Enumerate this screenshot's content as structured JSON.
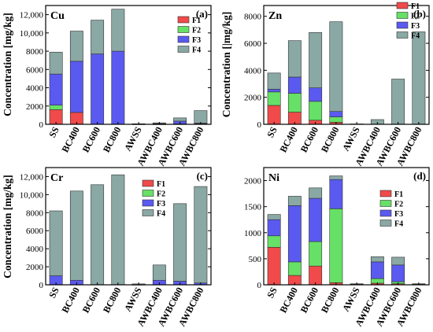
{
  "colors": {
    "F1": "#f04a4a",
    "F2": "#66e066",
    "F3": "#5a5af0",
    "F4": "#8aa8a4"
  },
  "chart_data": [
    {
      "type": "bar",
      "stacked": true,
      "element": "Cu",
      "panel": "(a)",
      "ylabel": "Concentration [mg/kg]",
      "ylim": [
        0,
        13000
      ],
      "yticks": [
        0,
        2000,
        4000,
        6000,
        8000,
        10000,
        12000
      ],
      "ytick_labels": [
        "0",
        "2000",
        "4000",
        "6000",
        "8000",
        "10,000",
        "12,000"
      ],
      "categories": [
        "SS",
        "BC400",
        "BC600",
        "BC800",
        "AWSS",
        "AWBC400",
        "AWBC600",
        "AWBC800"
      ],
      "legend": [
        "F1",
        "F2",
        "F3",
        "F4"
      ],
      "legend_position": "top-right",
      "series": [
        {
          "name": "F1",
          "values": [
            1600,
            1300,
            0,
            0,
            0,
            20,
            30,
            40
          ]
        },
        {
          "name": "F2",
          "values": [
            500,
            0,
            0,
            0,
            0,
            10,
            20,
            20
          ]
        },
        {
          "name": "F3",
          "values": [
            3400,
            5600,
            7700,
            8000,
            20,
            50,
            300,
            70
          ]
        },
        {
          "name": "F4",
          "values": [
            2400,
            3300,
            3700,
            4600,
            40,
            80,
            350,
            1370
          ]
        }
      ]
    },
    {
      "type": "bar",
      "stacked": true,
      "element": "Zn",
      "panel": "(b)",
      "ylabel": "Concentration [|mg/kg]",
      "ylim": [
        0,
        8800
      ],
      "yticks": [
        0,
        2000,
        4000,
        6000,
        8000
      ],
      "ytick_labels": [
        "0",
        "2000",
        "4000",
        "6000",
        "8000"
      ],
      "categories": [
        "SS",
        "BC400",
        "BC600",
        "BC800",
        "AWSS",
        "AWBC400",
        "AWBC600",
        "AWBC800"
      ],
      "legend": [
        "F1",
        "F2",
        "F3",
        "F4"
      ],
      "legend_position": "top-right",
      "series": [
        {
          "name": "F1",
          "values": [
            1400,
            900,
            300,
            150,
            0,
            0,
            0,
            0
          ]
        },
        {
          "name": "F2",
          "values": [
            1000,
            1400,
            1400,
            400,
            0,
            0,
            0,
            0
          ]
        },
        {
          "name": "F3",
          "values": [
            200,
            1200,
            1000,
            400,
            0,
            0,
            0,
            0
          ]
        },
        {
          "name": "F4",
          "values": [
            1200,
            2700,
            4100,
            6650,
            30,
            350,
            3350,
            6850
          ]
        }
      ]
    },
    {
      "type": "bar",
      "stacked": true,
      "element": "Cr",
      "panel": "(c)",
      "ylabel": "Concentration [mg/kg]",
      "ylim": [
        0,
        13000
      ],
      "yticks": [
        0,
        2000,
        4000,
        6000,
        8000,
        10000,
        12000
      ],
      "ytick_labels": [
        "0",
        "2000",
        "4000",
        "6000",
        "8000",
        "10,000",
        "12,000"
      ],
      "categories": [
        "SS",
        "BC400",
        "BC600",
        "BC800",
        "AWSS",
        "AWBC400",
        "AWBC600",
        "AWBC800"
      ],
      "legend": [
        "F1",
        "F2",
        "F3",
        "F4"
      ],
      "legend_position": "center-right",
      "series": [
        {
          "name": "F1",
          "values": [
            0,
            0,
            0,
            0,
            0,
            0,
            0,
            0
          ]
        },
        {
          "name": "F2",
          "values": [
            0,
            0,
            0,
            0,
            0,
            0,
            0,
            0
          ]
        },
        {
          "name": "F3",
          "values": [
            1000,
            500,
            0,
            0,
            20,
            500,
            400,
            200
          ]
        },
        {
          "name": "F4",
          "values": [
            7200,
            9900,
            11100,
            12200,
            80,
            1700,
            8600,
            10700
          ]
        }
      ]
    },
    {
      "type": "bar",
      "stacked": true,
      "element": "Ni",
      "panel": "(d)",
      "ylabel": "",
      "ylim": [
        0,
        2250
      ],
      "yticks": [
        0,
        500,
        1000,
        1500,
        2000
      ],
      "ytick_labels": [
        "0",
        "500",
        "1000",
        "1500",
        "2000"
      ],
      "categories": [
        "SS",
        "BC400",
        "BC600",
        "BC800",
        "AWSS",
        "AWBC400",
        "AWBC600",
        "AWBC800"
      ],
      "legend": [
        "F1",
        "F2",
        "F3",
        "F4"
      ],
      "legend_position": "center-right",
      "series": [
        {
          "name": "F1",
          "values": [
            720,
            180,
            360,
            40,
            0,
            30,
            20,
            0
          ]
        },
        {
          "name": "F2",
          "values": [
            220,
            260,
            470,
            1420,
            0,
            90,
            40,
            0
          ]
        },
        {
          "name": "F3",
          "values": [
            310,
            1080,
            830,
            560,
            10,
            320,
            320,
            10
          ]
        },
        {
          "name": "F4",
          "values": [
            100,
            180,
            200,
            70,
            10,
            100,
            150,
            10
          ]
        }
      ]
    }
  ]
}
